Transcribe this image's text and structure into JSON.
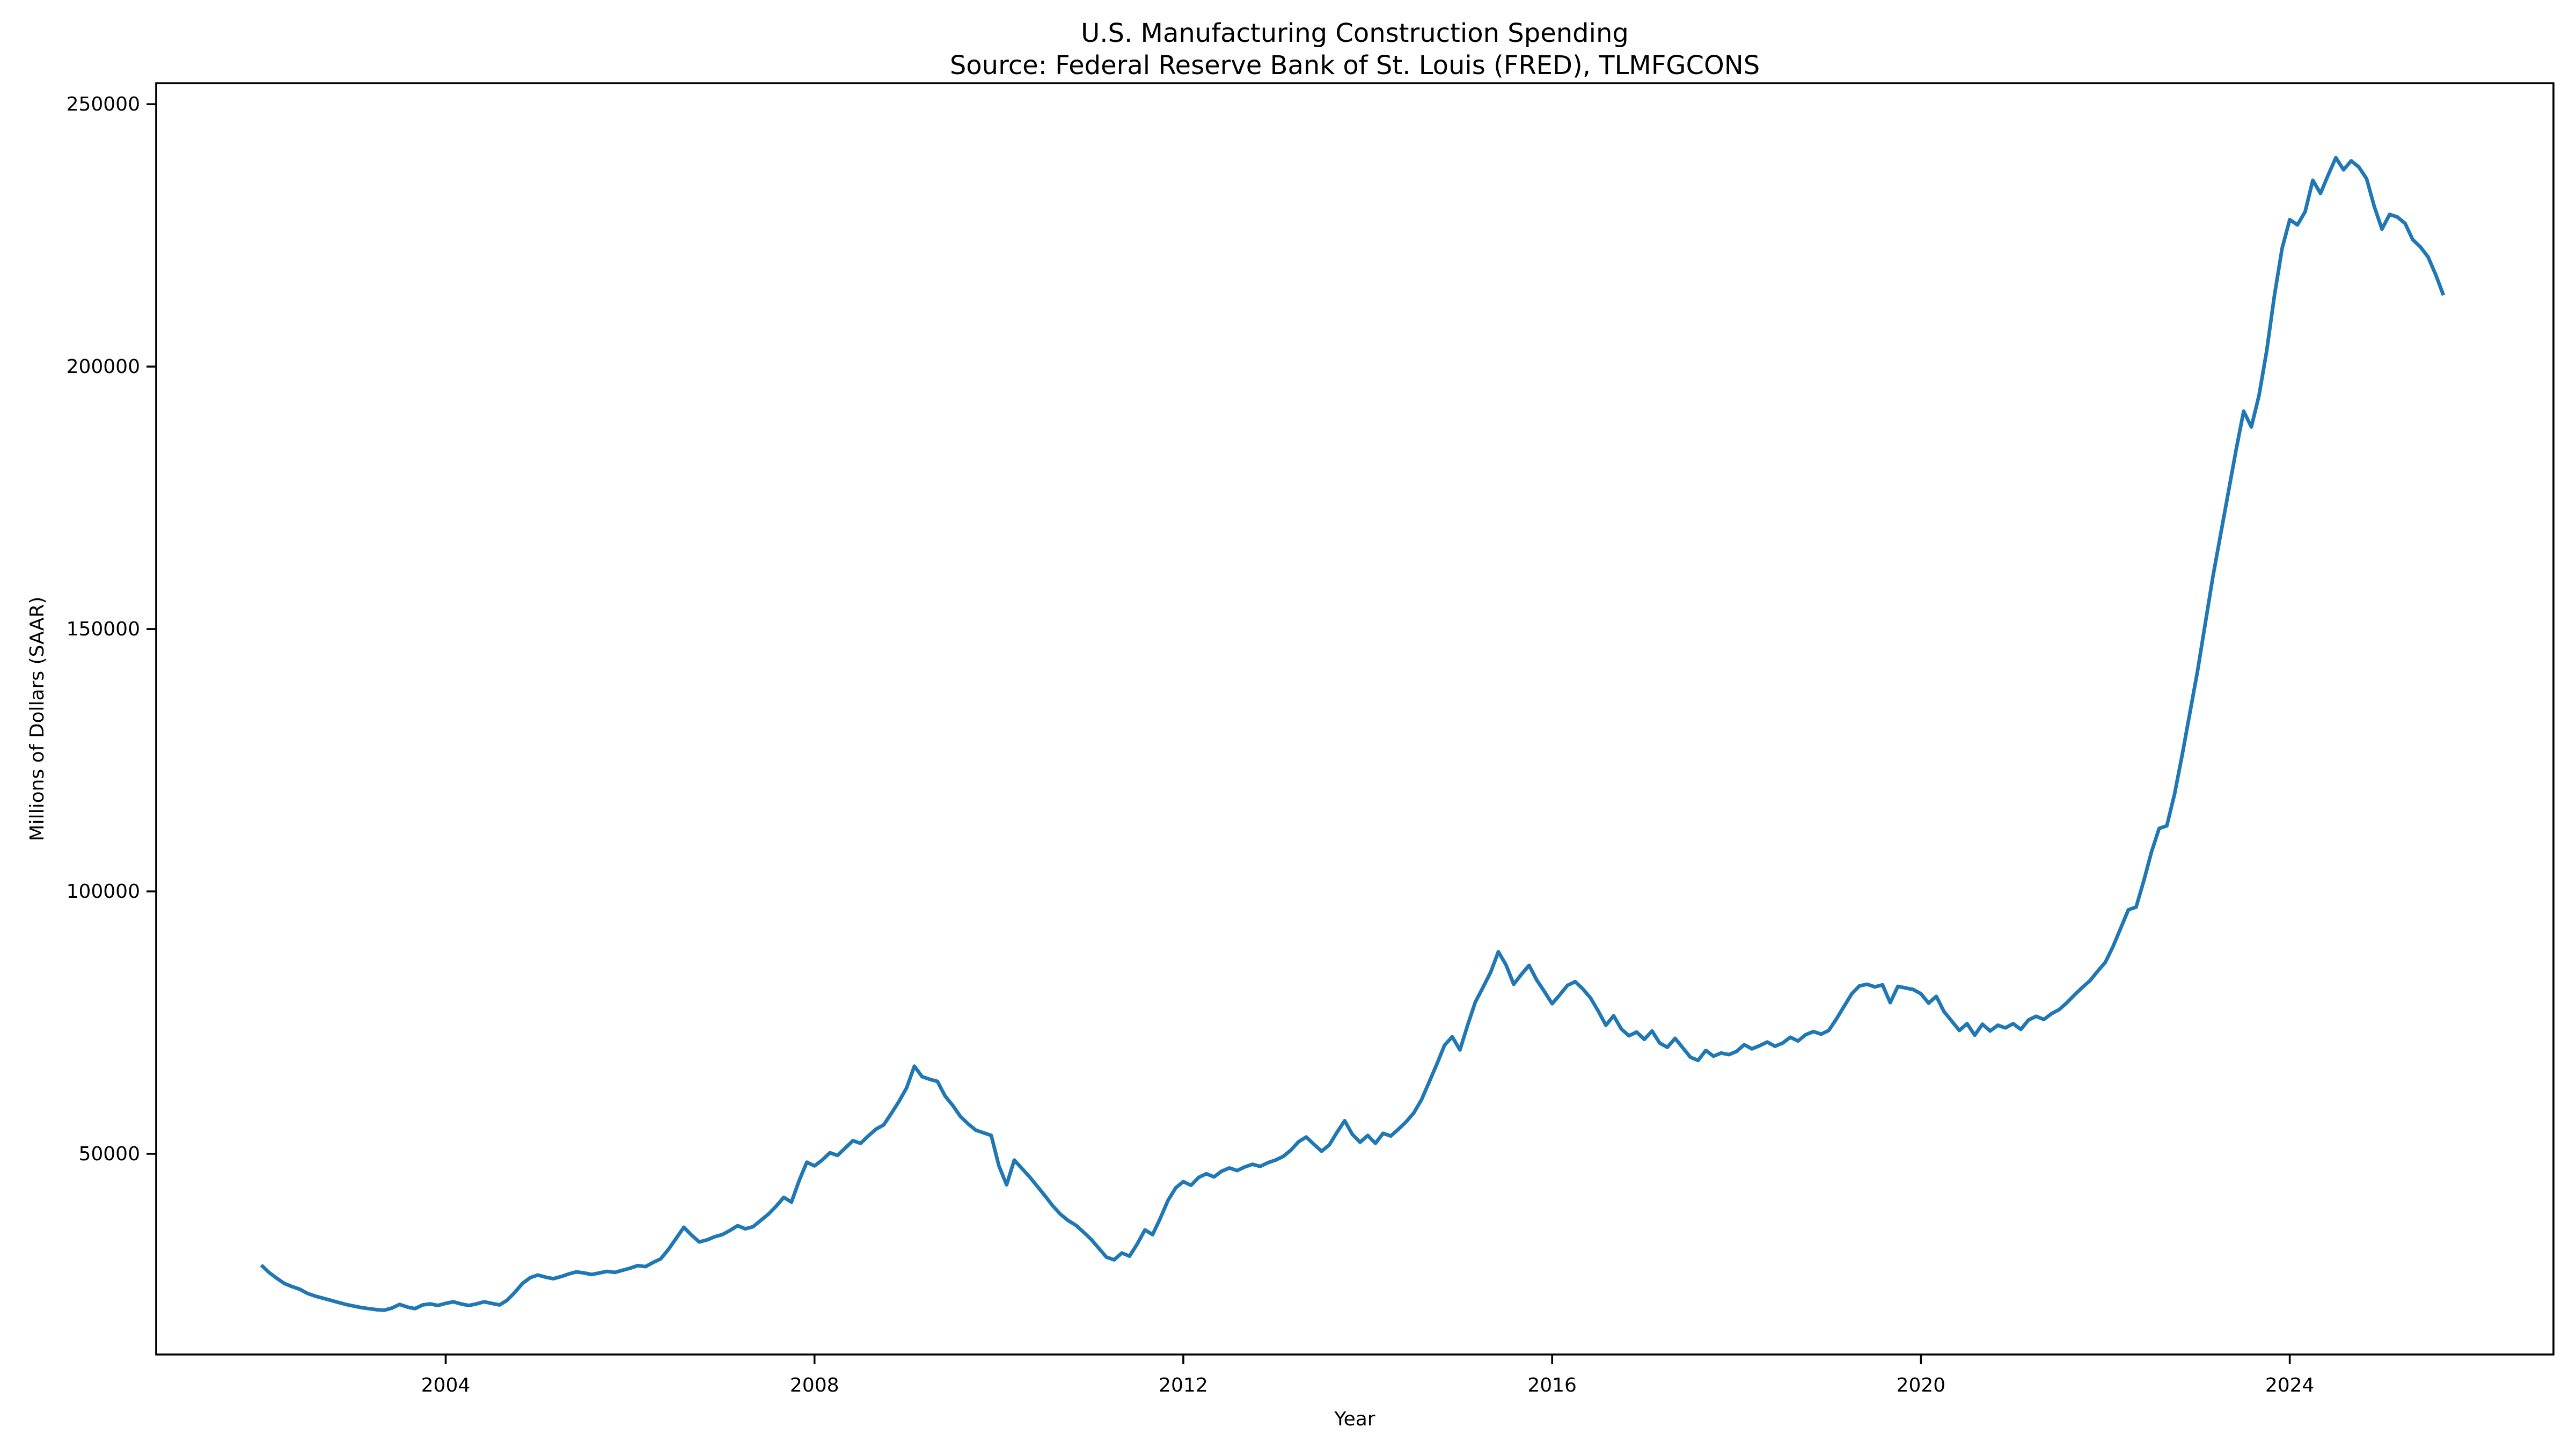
{
  "figure": {
    "background_color": "#ffffff",
    "spine_color": "#000000",
    "tick_color": "#000000",
    "text_color": "#000000"
  },
  "chart_data": {
    "type": "line",
    "title": "U.S. Manufacturing Construction Spending",
    "subtitle": "Source: Federal Reserve Bank of St. Louis (FRED), TLMFGCONS",
    "xlabel": "Year",
    "ylabel": "Millions of Dollars (SAAR)",
    "series_name": "TLMFGCONS",
    "line_color": "#1f77b4",
    "grid": false,
    "legend_position": "none",
    "xlim": [
      2000.86,
      2026.86
    ],
    "ylim": [
      11760,
      253990
    ],
    "x_ticks": [
      2004,
      2008,
      2012,
      2016,
      2020,
      2024
    ],
    "x_tick_labels": [
      "2004",
      "2008",
      "2012",
      "2016",
      "2020",
      "2024"
    ],
    "y_ticks": [
      50000,
      100000,
      150000,
      200000,
      250000
    ],
    "y_tick_labels": [
      "50000",
      "100000",
      "150000",
      "200000",
      "250000"
    ],
    "frequency": "monthly",
    "start_year": 2002,
    "start_month": 1,
    "end_year": 2025,
    "end_month": 9,
    "values": [
      28800,
      27400,
      26300,
      25300,
      24700,
      24200,
      23400,
      22900,
      22500,
      22100,
      21700,
      21300,
      21000,
      20700,
      20500,
      20300,
      20200,
      20600,
      21300,
      20800,
      20500,
      21200,
      21400,
      21100,
      21500,
      21800,
      21400,
      21100,
      21400,
      21800,
      21500,
      21200,
      22100,
      23600,
      25300,
      26400,
      26900,
      26500,
      26200,
      26600,
      27100,
      27500,
      27300,
      27000,
      27300,
      27600,
      27400,
      27800,
      28200,
      28700,
      28500,
      29300,
      30000,
      31800,
      33900,
      36000,
      34500,
      33200,
      33600,
      34200,
      34600,
      35400,
      36300,
      35700,
      36100,
      37300,
      38500,
      40000,
      41700,
      40800,
      44900,
      48400,
      47700,
      48800,
      50200,
      49700,
      51100,
      52500,
      52000,
      53400,
      54700,
      55500,
      57700,
      60000,
      62600,
      66700,
      64700,
      64200,
      63800,
      61000,
      59200,
      57100,
      55700,
      54500,
      54000,
      53500,
      47700,
      44100,
      48800,
      47200,
      45600,
      43800,
      42000,
      40100,
      38500,
      37300,
      36400,
      35100,
      33700,
      32000,
      30300,
      29800,
      31100,
      30500,
      32800,
      35500,
      34600,
      37700,
      41100,
      43500,
      44700,
      44000,
      45500,
      46200,
      45600,
      46700,
      47300,
      46800,
      47500,
      48000,
      47600,
      48300,
      48800,
      49500,
      50700,
      52300,
      53200,
      51800,
      50500,
      51700,
      54100,
      56300,
      53700,
      52200,
      53500,
      52000,
      53900,
      53400,
      54700,
      56100,
      57800,
      60300,
      63700,
      67100,
      70700,
      72300,
      69800,
      74500,
      78900,
      81700,
      84600,
      88500,
      86000,
      82300,
      84200,
      85900,
      83100,
      80900,
      78600,
      80300,
      82100,
      82800,
      81400,
      79700,
      77200,
      74500,
      76300,
      73800,
      72500,
      73200,
      71800,
      73400,
      71100,
      70300,
      72000,
      70200,
      68400,
      67800,
      69700,
      68600,
      69200,
      68900,
      69500,
      70800,
      70000,
      70600,
      71300,
      70500,
      71100,
      72200,
      71500,
      72700,
      73300,
      72800,
      73500,
      75700,
      78100,
      80500,
      82000,
      82300,
      81800,
      82200,
      78800,
      81900,
      81600,
      81300,
      80500,
      78700,
      80000,
      77100,
      75300,
      73500,
      74800,
      72600,
      74700,
      73400,
      74500,
      74000,
      74800,
      73700,
      75500,
      76200,
      75600,
      76700,
      77500,
      78800,
      80300,
      81700,
      83000,
      84800,
      86500,
      89500,
      93000,
      96500,
      97000,
      102000,
      107500,
      112000,
      112500,
      118500,
      126000,
      134000,
      142000,
      151000,
      160000,
      168000,
      176000,
      184000,
      191500,
      188500,
      194500,
      203000,
      213500,
      222500,
      228000,
      227000,
      229500,
      235500,
      233000,
      236500,
      239800,
      237500,
      239200,
      238000,
      235800,
      230500,
      226200,
      229000,
      228500,
      227300,
      224200,
      222800,
      220900,
      217500,
      213600
    ]
  }
}
